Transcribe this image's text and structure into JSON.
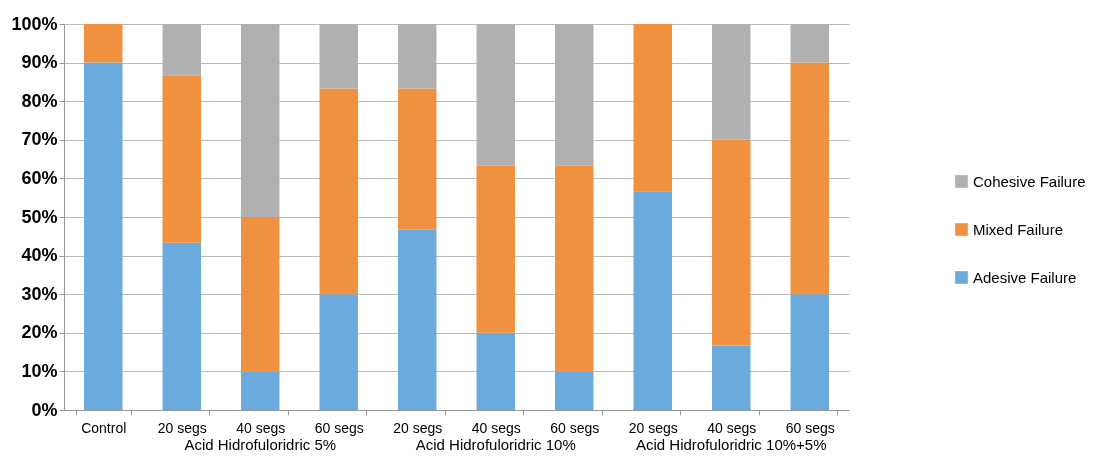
{
  "chart_data": {
    "type": "bar",
    "stacked": true,
    "categories": [
      "Control",
      "20 segs",
      "40 segs",
      "60 segs",
      "20 segs",
      "40 segs",
      "60 segs",
      "20 segs",
      "40 segs",
      "60 segs"
    ],
    "series": [
      {
        "name": "Adesive Failure",
        "color": "#6aaadc",
        "values": [
          90,
          43.3,
          10,
          30,
          46.7,
          20,
          10,
          56.7,
          16.7,
          30
        ]
      },
      {
        "name": "Mixed Failure",
        "color": "#f0913f",
        "values": [
          10,
          43.4,
          40,
          53.3,
          36.6,
          43.3,
          53.3,
          43.3,
          53.3,
          60
        ]
      },
      {
        "name": "Cohesive Failure",
        "color": "#b0b0b0",
        "values": [
          0,
          13.3,
          50,
          16.7,
          16.7,
          36.7,
          36.7,
          0,
          30,
          10
        ]
      }
    ],
    "ylim": [
      0,
      100
    ],
    "yticks": [
      {
        "value": 0,
        "label": "0%"
      },
      {
        "value": 10,
        "label": "10%"
      },
      {
        "value": 20,
        "label": "20%"
      },
      {
        "value": 30,
        "label": "30%"
      },
      {
        "value": 40,
        "label": "40%"
      },
      {
        "value": 50,
        "label": "50%"
      },
      {
        "value": 60,
        "label": "60%"
      },
      {
        "value": 70,
        "label": "70%"
      },
      {
        "value": 80,
        "label": "80%"
      },
      {
        "value": 90,
        "label": "90%"
      },
      {
        "value": 100,
        "label": "100%"
      }
    ],
    "grid": "y",
    "legend": "right",
    "annotations": [
      "Acid Hidrofuloridric 5%",
      "Acid Hidrofuloridric 10%",
      "Acid Hidrofuloridric 10%+5%"
    ]
  }
}
